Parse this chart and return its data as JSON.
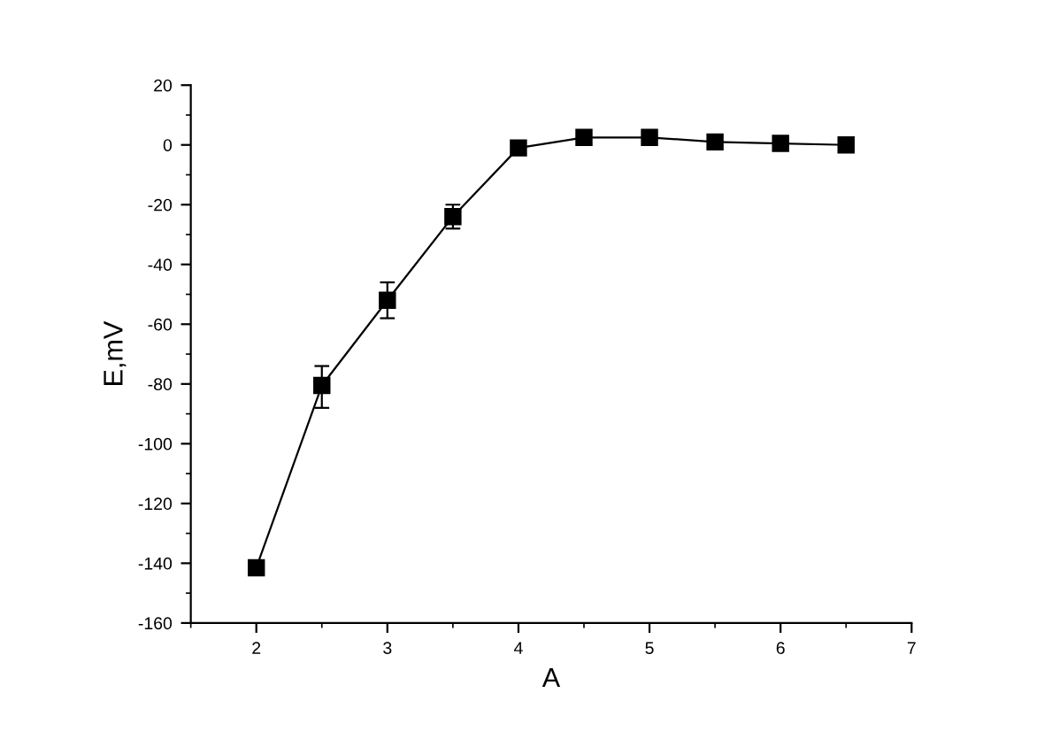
{
  "chart_data": {
    "type": "line",
    "xlabel": "A",
    "ylabel": "E,mV",
    "x": [
      2,
      2.5,
      3,
      3.5,
      4,
      4.5,
      5,
      5.5,
      6,
      6.5
    ],
    "series": [
      {
        "color": "#000000",
        "values": [
          -141.5,
          -80.5,
          -52,
          -24,
          -1,
          2.5,
          2.5,
          1,
          0.5,
          0
        ],
        "errors": [
          1.5,
          [
            -88,
            -74
          ],
          [
            -58,
            -46
          ],
          [
            -28,
            -20
          ],
          null,
          null,
          null,
          null,
          null,
          null
        ]
      }
    ],
    "marker": "square",
    "line_style": "solid",
    "grid": false,
    "legend": false,
    "xlim": [
      1.5,
      7
    ],
    "xticks": [
      2,
      3,
      4,
      5,
      6,
      7
    ],
    "ylim": [
      -160,
      20
    ],
    "yticks": [
      -160,
      -140,
      -120,
      -100,
      -80,
      -60,
      -40,
      -20,
      0,
      20
    ]
  }
}
